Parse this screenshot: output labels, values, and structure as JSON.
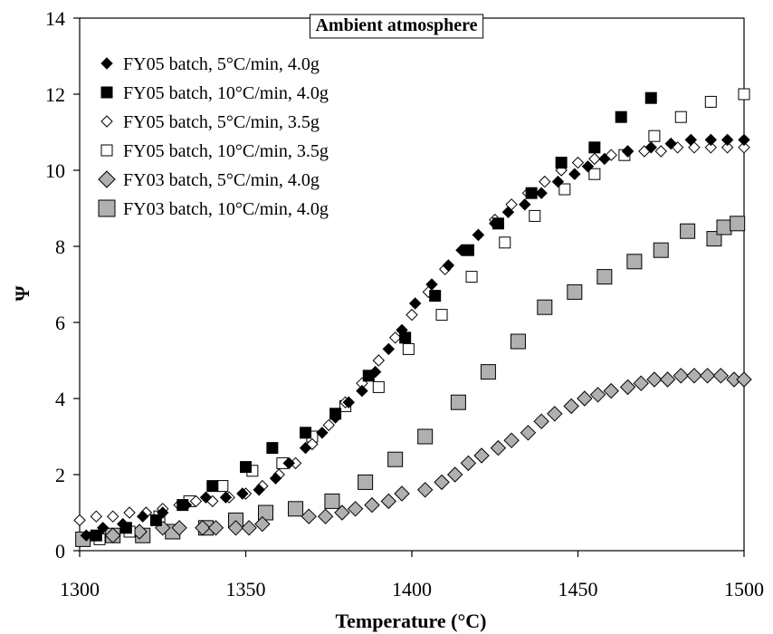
{
  "chart_data": {
    "type": "scatter",
    "title": "Ambient atmosphere",
    "xlabel": "Temperature (°C)",
    "ylabel": "Ψ",
    "xlim": [
      1300,
      1500
    ],
    "ylim": [
      0,
      14
    ],
    "xticks": [
      1300,
      1350,
      1400,
      1450,
      1500
    ],
    "yticks": [
      0,
      2,
      4,
      6,
      8,
      10,
      12,
      14
    ],
    "grid": false,
    "legend_position": "top-left",
    "series": [
      {
        "name": "FY05 batch, 5°C/min, 4.0g",
        "marker": "diamond",
        "fill": "#000000",
        "stroke": "#000000",
        "x": [
          1302,
          1307,
          1313,
          1319,
          1325,
          1332,
          1338,
          1344,
          1349,
          1354,
          1359,
          1363,
          1368,
          1373,
          1377,
          1381,
          1385,
          1389,
          1393,
          1397,
          1401,
          1406,
          1411,
          1415,
          1420,
          1425,
          1429,
          1434,
          1439,
          1444,
          1449,
          1453,
          1458,
          1465,
          1472,
          1478,
          1484,
          1490,
          1495,
          1500
        ],
        "y": [
          0.4,
          0.6,
          0.7,
          0.9,
          1.0,
          1.2,
          1.4,
          1.4,
          1.5,
          1.6,
          1.9,
          2.3,
          2.7,
          3.1,
          3.5,
          3.9,
          4.2,
          4.7,
          5.3,
          5.8,
          6.5,
          7.0,
          7.5,
          7.9,
          8.3,
          8.6,
          8.9,
          9.1,
          9.4,
          9.7,
          9.9,
          10.1,
          10.3,
          10.5,
          10.6,
          10.7,
          10.8,
          10.8,
          10.8,
          10.8
        ]
      },
      {
        "name": "FY05 batch, 10°C/min, 4.0g",
        "marker": "square",
        "fill": "#000000",
        "stroke": "#000000",
        "x": [
          1305,
          1314,
          1323,
          1331,
          1340,
          1350,
          1358,
          1368,
          1377,
          1387,
          1398,
          1407,
          1417,
          1426,
          1436,
          1445,
          1455,
          1463,
          1472
        ],
        "y": [
          0.4,
          0.6,
          0.8,
          1.2,
          1.7,
          2.2,
          2.7,
          3.1,
          3.6,
          4.6,
          5.6,
          6.7,
          7.9,
          8.6,
          9.4,
          10.2,
          10.6,
          11.4,
          11.9
        ]
      },
      {
        "name": "FY05 batch, 5°C/min, 3.5g",
        "marker": "diamond",
        "fill": "#ffffff",
        "stroke": "#000000",
        "x": [
          1300,
          1305,
          1310,
          1315,
          1320,
          1325,
          1330,
          1335,
          1340,
          1345,
          1350,
          1355,
          1360,
          1365,
          1370,
          1375,
          1380,
          1385,
          1390,
          1395,
          1400,
          1405,
          1410,
          1415,
          1420,
          1425,
          1430,
          1435,
          1440,
          1445,
          1450,
          1455,
          1460,
          1465,
          1470,
          1475,
          1480,
          1485,
          1490,
          1495,
          1500
        ],
        "y": [
          0.8,
          0.9,
          0.9,
          1.0,
          1.0,
          1.1,
          1.2,
          1.3,
          1.3,
          1.4,
          1.5,
          1.7,
          2.0,
          2.3,
          2.8,
          3.3,
          3.9,
          4.4,
          5.0,
          5.6,
          6.2,
          6.8,
          7.4,
          7.9,
          8.3,
          8.7,
          9.1,
          9.4,
          9.7,
          10.0,
          10.2,
          10.3,
          10.4,
          10.5,
          10.5,
          10.5,
          10.6,
          10.6,
          10.6,
          10.6,
          10.6
        ]
      },
      {
        "name": "FY05 batch, 10°C/min, 3.5g",
        "marker": "square",
        "fill": "#ffffff",
        "stroke": "#000000",
        "x": [
          1306,
          1315,
          1324,
          1333,
          1343,
          1352,
          1361,
          1370,
          1380,
          1390,
          1399,
          1409,
          1418,
          1428,
          1437,
          1446,
          1455,
          1464,
          1473,
          1481,
          1490,
          1500
        ],
        "y": [
          0.3,
          0.5,
          0.9,
          1.3,
          1.7,
          2.1,
          2.3,
          3.0,
          3.8,
          4.3,
          5.3,
          6.2,
          7.2,
          8.1,
          8.8,
          9.5,
          9.9,
          10.4,
          10.9,
          11.4,
          11.8,
          12.0
        ]
      },
      {
        "name": "FY03 batch, 5°C/min, 4.0g",
        "marker": "diamond",
        "fill": "#b0b0b0",
        "stroke": "#000000",
        "x": [
          1310,
          1318,
          1325,
          1330,
          1337,
          1341,
          1347,
          1351,
          1355,
          1369,
          1374,
          1379,
          1383,
          1388,
          1393,
          1397,
          1404,
          1409,
          1413,
          1417,
          1421,
          1426,
          1430,
          1435,
          1439,
          1443,
          1448,
          1452,
          1456,
          1460,
          1465,
          1469,
          1473,
          1477,
          1481,
          1485,
          1489,
          1493,
          1497,
          1500
        ],
        "y": [
          0.4,
          0.5,
          0.6,
          0.6,
          0.6,
          0.6,
          0.6,
          0.6,
          0.7,
          0.9,
          0.9,
          1.0,
          1.1,
          1.2,
          1.3,
          1.5,
          1.6,
          1.8,
          2.0,
          2.3,
          2.5,
          2.7,
          2.9,
          3.1,
          3.4,
          3.6,
          3.8,
          4.0,
          4.1,
          4.2,
          4.3,
          4.4,
          4.5,
          4.5,
          4.6,
          4.6,
          4.6,
          4.6,
          4.5,
          4.5
        ]
      },
      {
        "name": "FY03 batch, 10°C/min, 4.0g",
        "marker": "square",
        "fill": "#b0b0b0",
        "stroke": "#000000",
        "x": [
          1301,
          1310,
          1319,
          1328,
          1338,
          1347,
          1356,
          1365,
          1376,
          1386,
          1395,
          1404,
          1414,
          1423,
          1432,
          1440,
          1449,
          1458,
          1467,
          1475,
          1483,
          1491,
          1494,
          1498
        ],
        "y": [
          0.3,
          0.4,
          0.4,
          0.5,
          0.6,
          0.8,
          1.0,
          1.1,
          1.3,
          1.8,
          2.4,
          3.0,
          3.9,
          4.7,
          5.5,
          6.4,
          6.8,
          7.2,
          7.6,
          7.9,
          8.4,
          8.2,
          8.5,
          8.6
        ]
      }
    ]
  }
}
